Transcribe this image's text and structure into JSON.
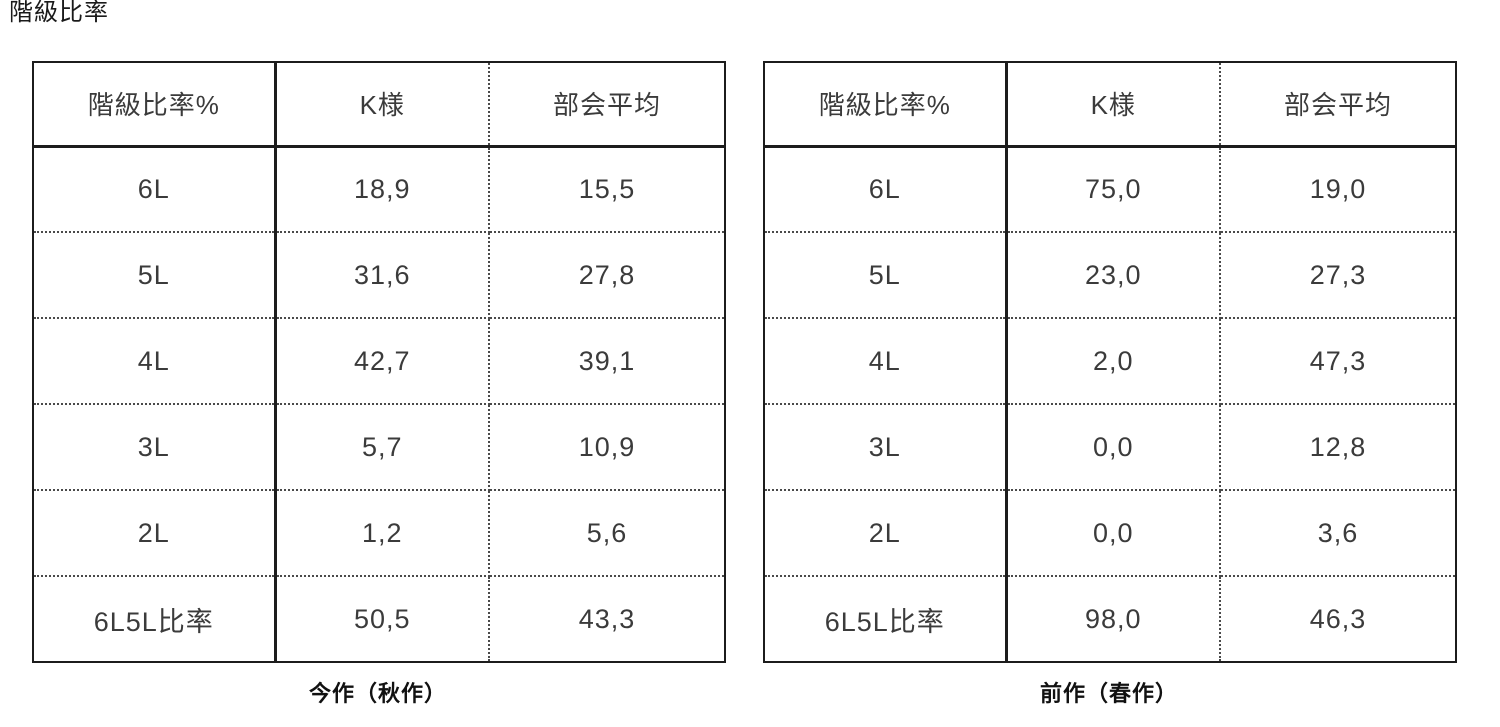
{
  "page_title": "階級比率",
  "colors": {
    "accent_red": "#e84b41",
    "text": "#3b3b3b",
    "border": "#1c1c1c",
    "background": "#ffffff"
  },
  "tables": [
    {
      "caption": "今作（秋作）",
      "headers": [
        "階級比率%",
        "K様",
        "部会平均"
      ],
      "rows": [
        {
          "label": "6L",
          "k": "18,9",
          "avg": "15,5",
          "k_red": true
        },
        {
          "label": "5L",
          "k": "31,6",
          "avg": "27,8",
          "k_red": true
        },
        {
          "label": "4L",
          "k": "42,7",
          "avg": "39,1",
          "k_red": false
        },
        {
          "label": "3L",
          "k": "5,7",
          "avg": "10,9",
          "k_red": false
        },
        {
          "label": "2L",
          "k": "1,2",
          "avg": "5,6",
          "k_red": false
        },
        {
          "label": "6L5L比率",
          "k": "50,5",
          "avg": "43,3",
          "k_red": true
        }
      ]
    },
    {
      "caption": "前作（春作）",
      "headers": [
        "階級比率%",
        "K様",
        "部会平均"
      ],
      "rows": [
        {
          "label": "6L",
          "k": "75,0",
          "avg": "19,0",
          "k_red": true
        },
        {
          "label": "5L",
          "k": "23,0",
          "avg": "27,3",
          "k_red": true
        },
        {
          "label": "4L",
          "k": "2,0",
          "avg": "47,3",
          "k_red": false
        },
        {
          "label": "3L",
          "k": "0,0",
          "avg": "12,8",
          "k_red": false
        },
        {
          "label": "2L",
          "k": "0,0",
          "avg": "3,6",
          "k_red": false
        },
        {
          "label": "6L5L比率",
          "k": "98,0",
          "avg": "46,3",
          "k_red": true
        }
      ]
    }
  ]
}
